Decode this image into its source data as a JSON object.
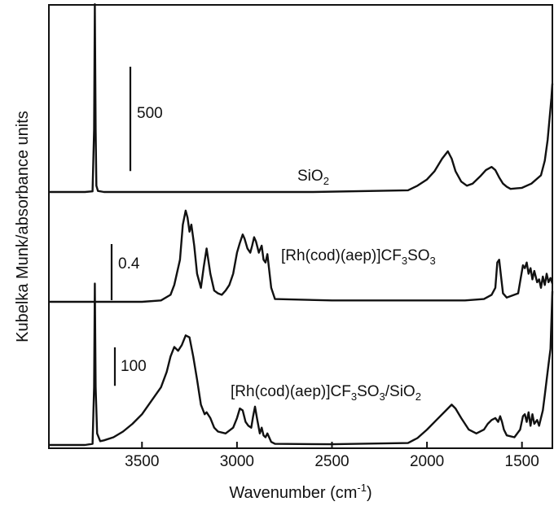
{
  "chart_data": {
    "type": "line",
    "xlabel_main": "Wavenumber (cm",
    "xlabel_sup": "-1",
    "xlabel_tail": ")",
    "ylabel": "Kubelka Munk/absorbance units",
    "x_reversed": true,
    "xlim": [
      3990,
      1340
    ],
    "x_ticks": [
      3500,
      3000,
      2500,
      2000,
      1500
    ],
    "x_tick_labels": [
      "3500",
      "3000",
      "2500",
      "2000",
      "1500"
    ],
    "series": [
      {
        "name_parts": [
          [
            "SiO",
            "n"
          ],
          [
            "2",
            "sub"
          ]
        ],
        "x": [
          3990,
          3800,
          3760,
          3752,
          3748,
          3744,
          3740,
          3732,
          3700,
          3500,
          3000,
          2600,
          2100,
          2050,
          2000,
          1960,
          1920,
          1890,
          1870,
          1850,
          1820,
          1790,
          1760,
          1720,
          1690,
          1660,
          1640,
          1620,
          1600,
          1580,
          1560,
          1500,
          1450,
          1400,
          1380,
          1365,
          1355,
          1345,
          1340
        ],
        "y": [
          0,
          0,
          3,
          300,
          900,
          300,
          30,
          5,
          0,
          0,
          0,
          0,
          8,
          30,
          60,
          100,
          160,
          195,
          160,
          100,
          50,
          30,
          40,
          75,
          105,
          120,
          105,
          70,
          40,
          25,
          15,
          20,
          40,
          80,
          150,
          250,
          350,
          450,
          520
        ]
      },
      {
        "name_parts": [
          [
            "[Rh(cod)(aep)]CF",
            "n"
          ],
          [
            "3",
            "sub"
          ],
          [
            "SO",
            "n"
          ],
          [
            "3",
            "sub"
          ]
        ],
        "x": [
          3990,
          3500,
          3400,
          3350,
          3330,
          3300,
          3285,
          3270,
          3260,
          3250,
          3240,
          3225,
          3210,
          3190,
          3175,
          3160,
          3140,
          3120,
          3100,
          3080,
          3060,
          3040,
          3020,
          3000,
          2985,
          2970,
          2960,
          2945,
          2930,
          2920,
          2910,
          2900,
          2885,
          2870,
          2860,
          2850,
          2840,
          2820,
          2800,
          2500,
          2200,
          1800,
          1700,
          1660,
          1640,
          1630,
          1620,
          1610,
          1600,
          1580,
          1520,
          1505,
          1495,
          1485,
          1475,
          1465,
          1455,
          1445,
          1435,
          1420,
          1410,
          1400,
          1390,
          1380,
          1370,
          1360,
          1350,
          1340
        ],
        "y": [
          0,
          0,
          0.01,
          0.05,
          0.12,
          0.3,
          0.55,
          0.65,
          0.6,
          0.5,
          0.55,
          0.4,
          0.2,
          0.1,
          0.25,
          0.38,
          0.2,
          0.08,
          0.06,
          0.05,
          0.08,
          0.12,
          0.2,
          0.35,
          0.42,
          0.48,
          0.45,
          0.38,
          0.35,
          0.4,
          0.46,
          0.43,
          0.35,
          0.4,
          0.3,
          0.28,
          0.34,
          0.1,
          0.02,
          0.01,
          0.01,
          0.01,
          0.02,
          0.05,
          0.1,
          0.28,
          0.3,
          0.18,
          0.06,
          0.03,
          0.06,
          0.18,
          0.26,
          0.24,
          0.28,
          0.2,
          0.24,
          0.16,
          0.22,
          0.14,
          0.16,
          0.1,
          0.18,
          0.12,
          0.2,
          0.14,
          0.17,
          0.13
        ]
      },
      {
        "name_parts": [
          [
            "[Rh(cod)(aep)]CF",
            "n"
          ],
          [
            "3",
            "sub"
          ],
          [
            "SO",
            "n"
          ],
          [
            "3",
            "sub"
          ],
          [
            "/SiO",
            "n"
          ],
          [
            "2",
            "sub"
          ]
        ],
        "x": [
          3990,
          3800,
          3760,
          3752,
          3748,
          3744,
          3736,
          3720,
          3700,
          3650,
          3600,
          3550,
          3500,
          3450,
          3400,
          3370,
          3350,
          3330,
          3310,
          3290,
          3270,
          3250,
          3230,
          3210,
          3190,
          3170,
          3160,
          3140,
          3120,
          3100,
          3060,
          3020,
          3000,
          2985,
          2970,
          2955,
          2940,
          2925,
          2915,
          2905,
          2895,
          2880,
          2870,
          2860,
          2850,
          2840,
          2820,
          2800,
          2500,
          2100,
          2050,
          2000,
          1950,
          1900,
          1870,
          1850,
          1820,
          1780,
          1740,
          1700,
          1680,
          1660,
          1640,
          1625,
          1615,
          1605,
          1595,
          1580,
          1540,
          1510,
          1495,
          1485,
          1475,
          1465,
          1455,
          1445,
          1435,
          1420,
          1410,
          1400,
          1390,
          1380,
          1370,
          1360,
          1350,
          1345,
          1340
        ],
        "y": [
          0,
          0,
          3,
          150,
          420,
          150,
          30,
          10,
          12,
          20,
          35,
          55,
          80,
          115,
          150,
          190,
          230,
          255,
          245,
          260,
          285,
          280,
          230,
          170,
          105,
          80,
          85,
          70,
          45,
          35,
          30,
          45,
          70,
          95,
          90,
          60,
          50,
          45,
          75,
          100,
          70,
          30,
          45,
          25,
          20,
          30,
          8,
          3,
          2,
          5,
          18,
          40,
          65,
          90,
          105,
          95,
          70,
          40,
          30,
          40,
          55,
          65,
          70,
          60,
          75,
          60,
          40,
          25,
          20,
          40,
          75,
          80,
          60,
          85,
          50,
          80,
          55,
          65,
          50,
          70,
          90,
          130,
          170,
          210,
          250,
          320,
          400
        ]
      }
    ],
    "scale_bars": [
      {
        "label": "500",
        "value": 500,
        "series_index": 0
      },
      {
        "label": "0.4",
        "value": 0.4,
        "series_index": 1
      },
      {
        "label": "100",
        "value": 100,
        "series_index": 2
      }
    ],
    "legend": "none (curves labeled directly)",
    "grid": false
  }
}
